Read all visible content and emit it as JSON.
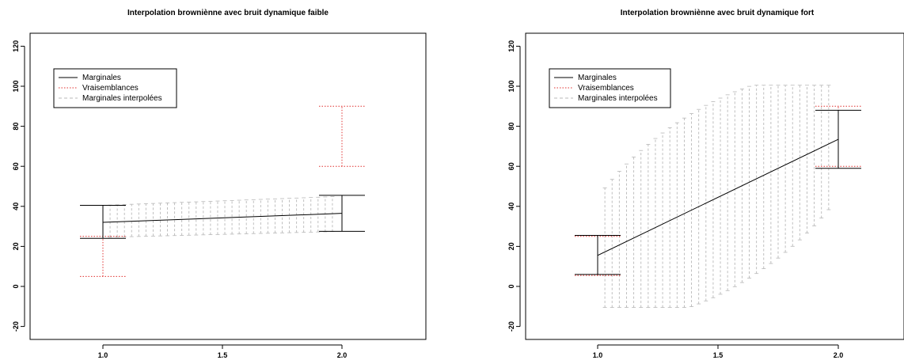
{
  "colors": {
    "marginal": "#000000",
    "likelihood": "#e0302f",
    "interpolated": "#b8b8b8"
  },
  "legend": {
    "marginales": "Marginales",
    "vraisemblances": "Vraisemblances",
    "interpolees": "Marginales interpolées"
  },
  "chart_data": [
    {
      "type": "interval",
      "title": "Interpolation browniènne avec bruit dynamique faible",
      "xlabel": "",
      "ylabel": "",
      "xlim": [
        0.7,
        2.3
      ],
      "ylim": [
        -25,
        125
      ],
      "xticks": [
        "1.0",
        "1.5",
        "2.0"
      ],
      "yticks": [
        "-20",
        "0",
        "20",
        "40",
        "60",
        "80",
        "100",
        "120"
      ],
      "legend_position": "top-left",
      "marginal_line": [
        [
          1.0,
          32
        ],
        [
          2.0,
          36.5
        ]
      ],
      "marginal_intervals": [
        {
          "x": 1.0,
          "low": 24,
          "high": 40.5
        },
        {
          "x": 2.0,
          "low": 27.5,
          "high": 45.5
        }
      ],
      "likelihood_intervals": [
        {
          "x": 1.0,
          "low": 5,
          "high": 25
        },
        {
          "x": 2.0,
          "low": 60,
          "high": 90
        }
      ],
      "interpolated_band": {
        "shape": "linear",
        "x_start": 1.03,
        "x_end": 1.97,
        "step": 0.03,
        "low": [
          24.5,
          27.5
        ],
        "high": [
          40.5,
          45
        ]
      }
    },
    {
      "type": "interval",
      "title": "Interpolation browniènne avec bruit dynamique fort",
      "xlabel": "",
      "ylabel": "",
      "xlim": [
        0.7,
        2.3
      ],
      "ylim": [
        -25,
        125
      ],
      "xticks": [
        "1.0",
        "1.5",
        "2.0"
      ],
      "yticks": [
        "-20",
        "0",
        "20",
        "40",
        "60",
        "80",
        "100",
        "120"
      ],
      "legend_position": "top-left",
      "marginal_line": [
        [
          1.0,
          15.5
        ],
        [
          2.0,
          73.5
        ]
      ],
      "marginal_intervals": [
        {
          "x": 1.0,
          "low": 6,
          "high": 25.5
        },
        {
          "x": 2.0,
          "low": 59,
          "high": 88
        }
      ],
      "likelihood_intervals": [
        {
          "x": 1.0,
          "low": 5.5,
          "high": 25
        },
        {
          "x": 2.0,
          "low": 60,
          "high": 90
        }
      ],
      "interpolated_band": {
        "shape": "ellipse",
        "x_start": 1.03,
        "x_end": 1.97,
        "step": 0.03,
        "center": [
          1.5,
          45
        ],
        "half_axes": [
          0.5,
          30
        ],
        "extremes": {
          "min": [
            1.22,
            -10
          ],
          "max": [
            1.8,
            100
          ]
        }
      }
    }
  ]
}
